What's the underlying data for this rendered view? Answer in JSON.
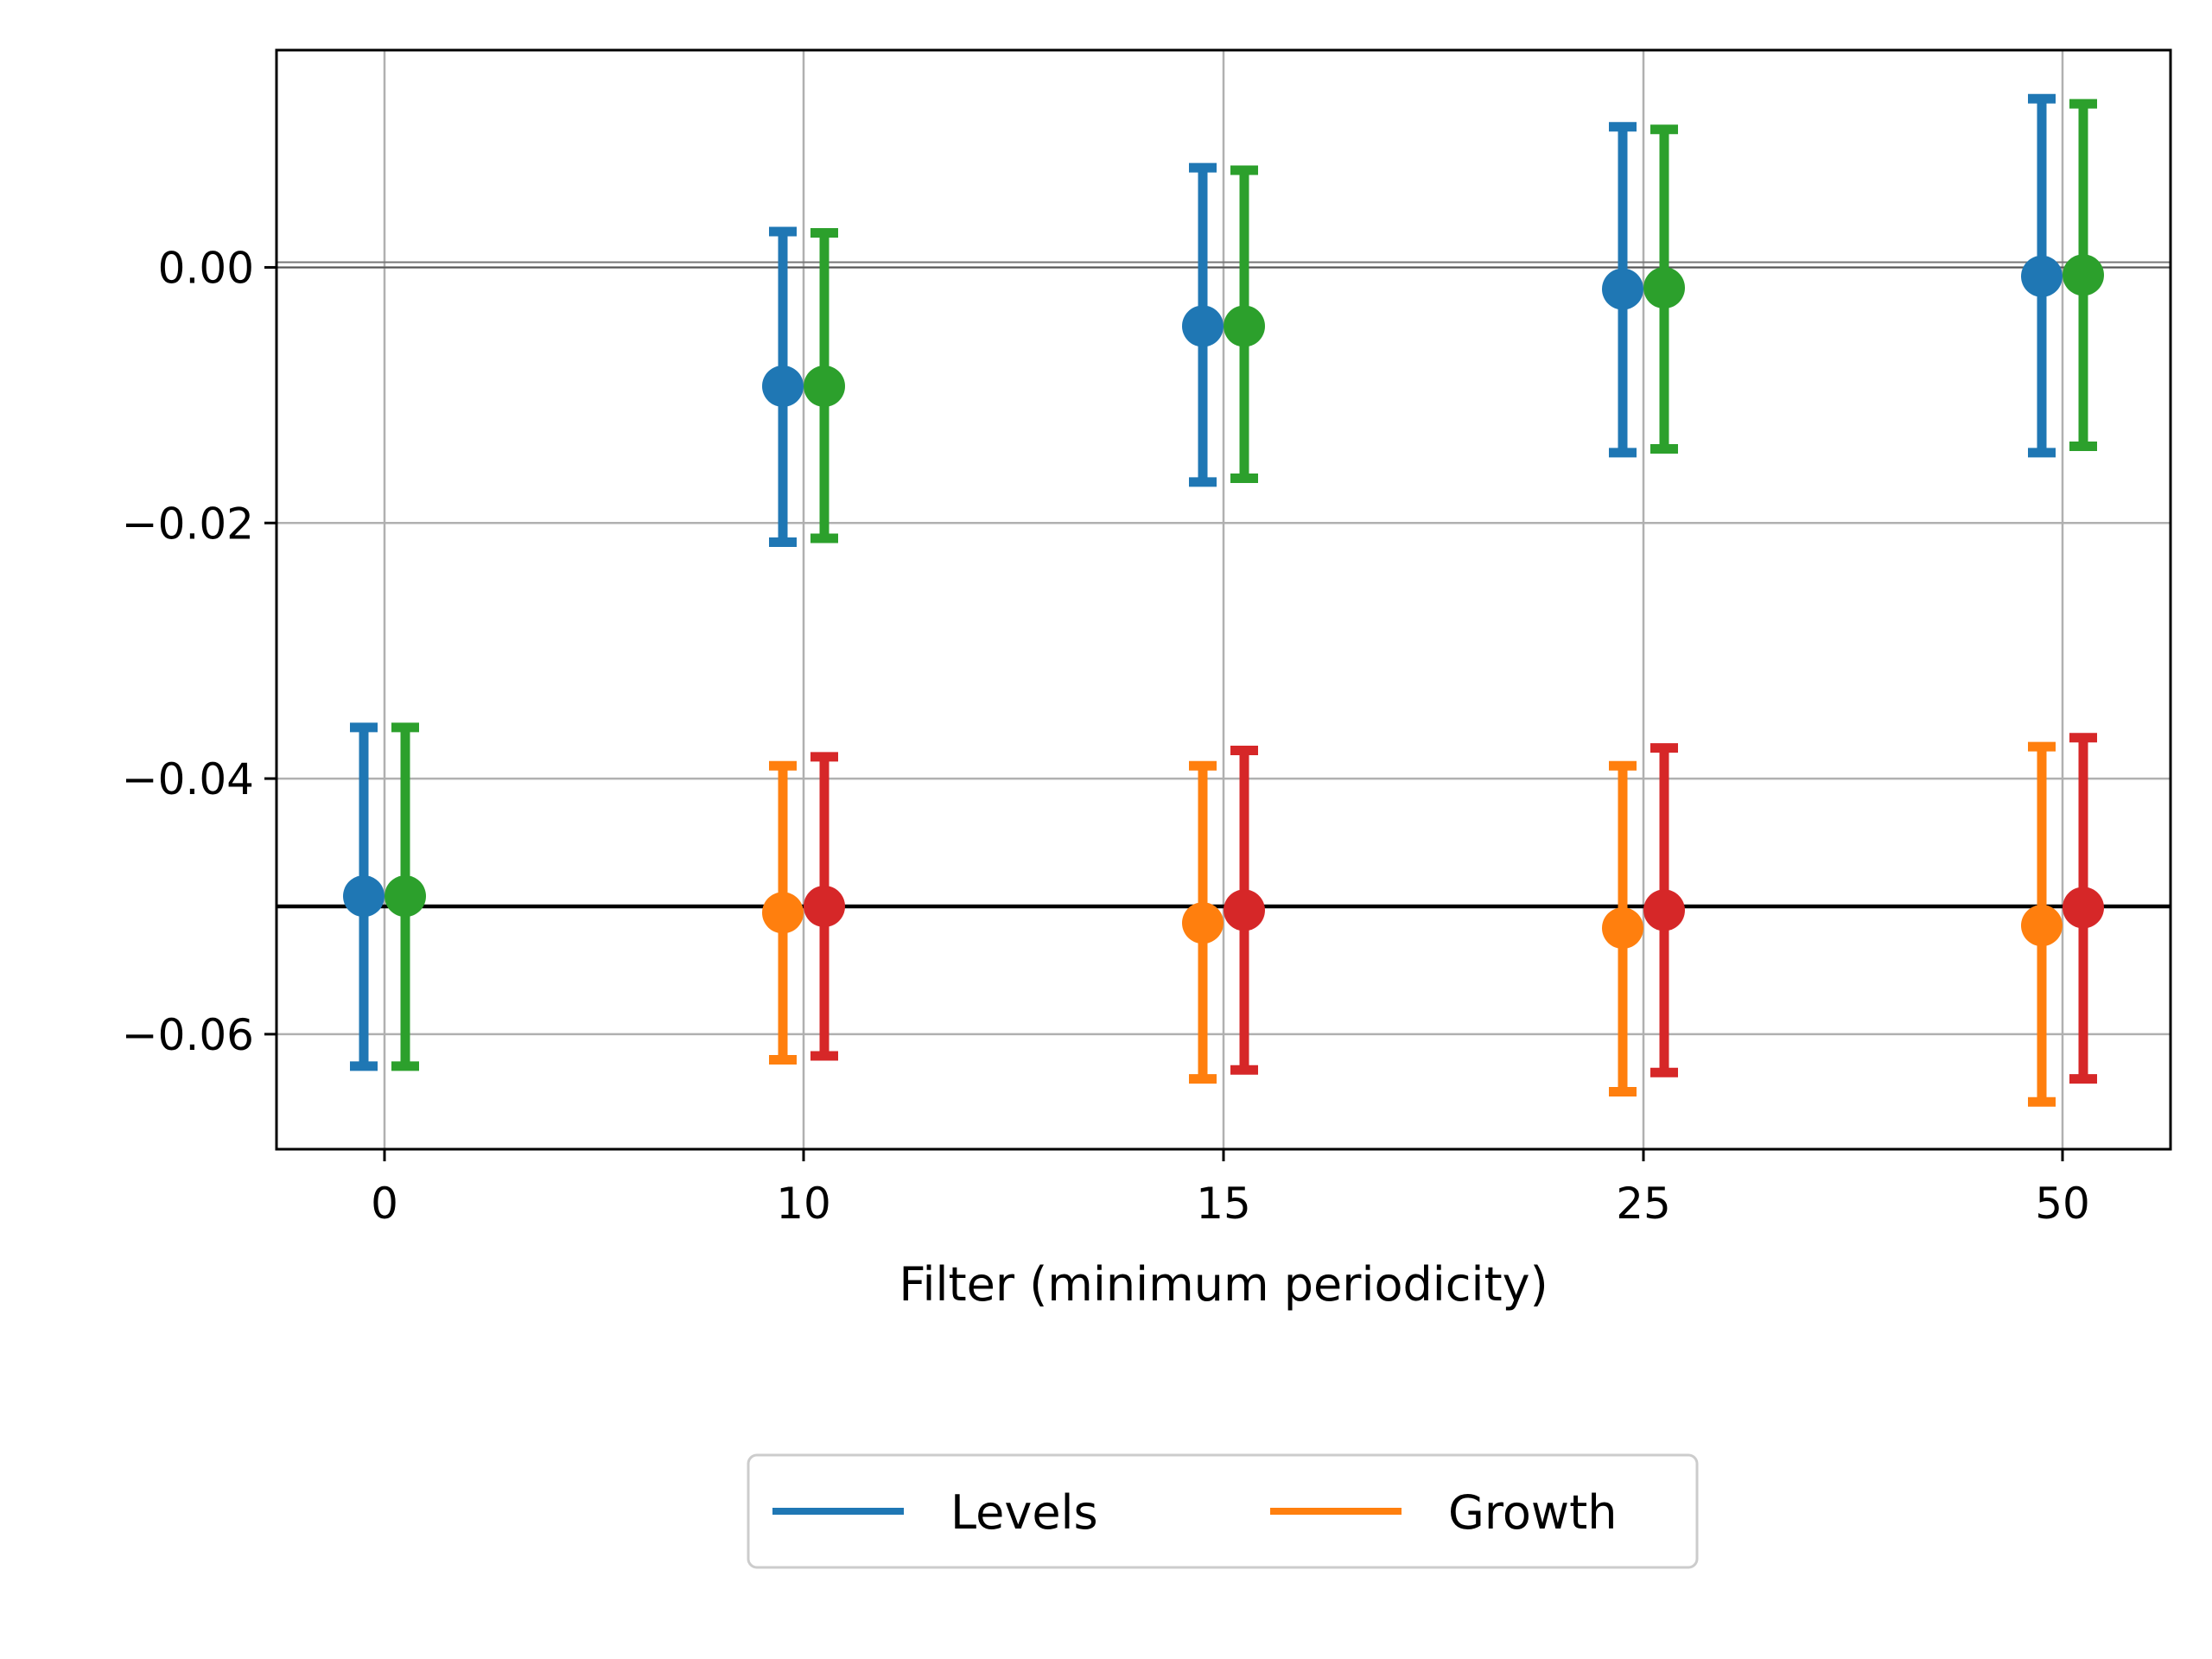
{
  "chart_data": {
    "type": "scatter",
    "title": "",
    "xlabel": "Filter (minimum periodicity)",
    "ylabel": "",
    "categories": [
      "0",
      "10",
      "15",
      "25",
      "50"
    ],
    "ylim": [
      -0.069,
      0.017
    ],
    "yticks": [
      0.0,
      -0.02,
      -0.04,
      -0.06
    ],
    "ytick_labels": [
      "0.00",
      "−0.02",
      "−0.04",
      "−0.06"
    ],
    "grid": true,
    "reference_lines": [
      0.0,
      -0.05
    ],
    "legend": {
      "placement": "bottom-center (below plot)",
      "entries": [
        {
          "label": "Levels",
          "color": "#1f77b4"
        },
        {
          "label": "Growth",
          "color": "#ff7f0e"
        }
      ]
    },
    "series": [
      {
        "color": "#1f77b4",
        "offset": "left",
        "categories": [
          "0",
          "10",
          "15",
          "25",
          "50"
        ],
        "values": [
          -0.0492,
          -0.0093,
          -0.0046,
          -0.0017,
          -0.0007
        ],
        "lower": [
          -0.0625,
          -0.0215,
          -0.0168,
          -0.0145,
          -0.0145
        ],
        "upper": [
          -0.036,
          0.0028,
          0.0078,
          0.011,
          0.0132
        ]
      },
      {
        "color": "#2ca02c",
        "offset": "right",
        "categories": [
          "0",
          "10",
          "15",
          "25",
          "50"
        ],
        "values": [
          -0.0492,
          -0.0093,
          -0.0046,
          -0.0016,
          -0.0006
        ],
        "lower": [
          -0.0625,
          -0.0212,
          -0.0165,
          -0.0142,
          -0.014
        ],
        "upper": [
          -0.036,
          0.0027,
          0.0076,
          0.0108,
          0.0128
        ]
      },
      {
        "color": "#ff7f0e",
        "offset": "left",
        "categories": [
          "10",
          "15",
          "25",
          "50"
        ],
        "values": [
          -0.0505,
          -0.0513,
          -0.0517,
          -0.0515
        ],
        "lower": [
          -0.062,
          -0.0635,
          -0.0645,
          -0.0653
        ],
        "upper": [
          -0.039,
          -0.039,
          -0.039,
          -0.0375
        ]
      },
      {
        "color": "#d62728",
        "offset": "right",
        "categories": [
          "10",
          "15",
          "25",
          "50"
        ],
        "values": [
          -0.05,
          -0.0503,
          -0.0503,
          -0.0501
        ],
        "lower": [
          -0.0617,
          -0.0628,
          -0.063,
          -0.0635
        ],
        "upper": [
          -0.0383,
          -0.0378,
          -0.0376,
          -0.0368
        ]
      }
    ]
  }
}
